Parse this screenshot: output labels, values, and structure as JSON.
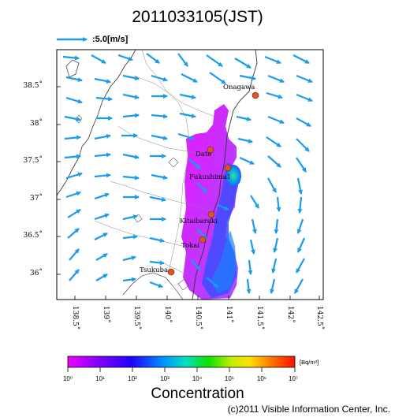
{
  "title": "2011033105(JST)",
  "wind_reference": {
    "label": ":5.0[m/s]",
    "color": "#1a9bee"
  },
  "axes": {
    "lat_ticks": [
      "38.5˚",
      "38˚",
      "37.5˚",
      "37˚",
      "36.5˚",
      "36˚"
    ],
    "lon_ticks": [
      "138.5˚",
      "139˚",
      "139.5˚",
      "140˚",
      "140.5˚",
      "141˚",
      "141.5˚",
      "142˚",
      "142.5˚"
    ]
  },
  "places": [
    {
      "name": "Onagawa",
      "marker_color": "#e8501f"
    },
    {
      "name": "Date",
      "marker_color": "#e8501f"
    },
    {
      "name": "Fukushima1",
      "marker_color": "#e8501f"
    },
    {
      "name": "Kitaibaraki",
      "marker_color": "#e8501f"
    },
    {
      "name": "Tokai",
      "marker_color": "#e8501f"
    },
    {
      "name": "Tsukuba",
      "marker_color": "#e8501f"
    }
  ],
  "colorbar": {
    "unit": "[Bq/m³]",
    "tick_labels": [
      "10⁰",
      "10¹",
      "10²",
      "10³",
      "10⁴",
      "10⁵",
      "10⁶",
      "10⁷"
    ],
    "colors": [
      "#e600ff",
      "#9a00ff",
      "#3010ff",
      "#0060ff",
      "#00b0f0",
      "#00e0a0",
      "#20e020",
      "#b0f000",
      "#ffe000",
      "#ff8000",
      "#ff2000"
    ],
    "label": "Concentration"
  },
  "copyright": "(c)2011 Visible Information Center, Inc.",
  "colors": {
    "wind_arrow": "#1a9bee",
    "coastline": "#333333"
  }
}
